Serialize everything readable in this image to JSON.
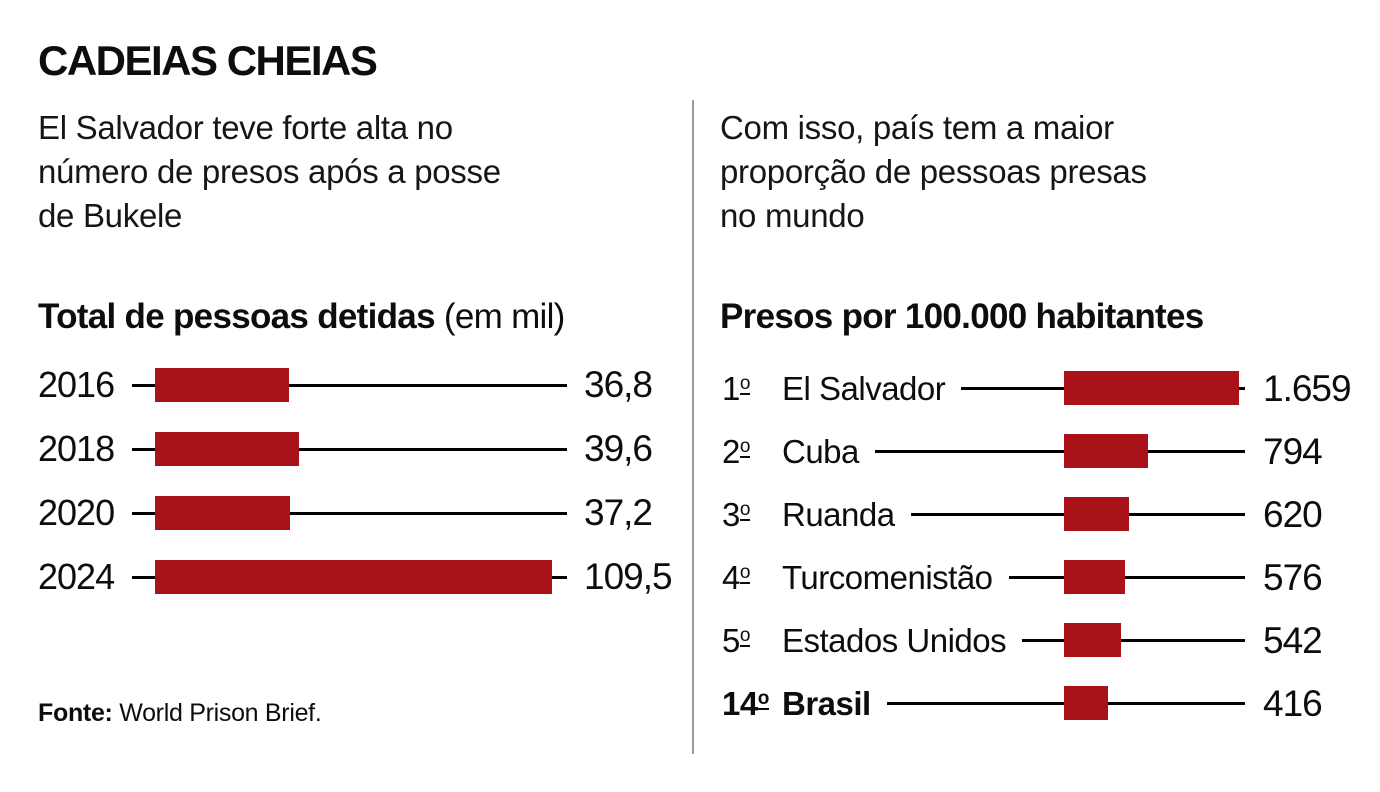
{
  "page": {
    "title": "CADEIAS CHEIAS"
  },
  "left": {
    "subtitle_lines": [
      "El Salvador teve forte alta no",
      "número de presos após a posse",
      "de Bukele"
    ],
    "source_label": "Fonte:",
    "source_text": "World Prison Brief."
  },
  "right": {
    "subtitle_lines": [
      "Com isso, país tem a maior",
      "proporção de pessoas presas",
      "no mundo"
    ]
  },
  "colors": {
    "bar_red": "#a91218",
    "line_black": "#000000",
    "divider_gray": "#9a9a9a"
  },
  "chart_data": [
    {
      "type": "bar",
      "orientation": "horizontal",
      "title": "Total de pessoas detidas",
      "title_note": "(em mil)",
      "categories": [
        "2016",
        "2018",
        "2020",
        "2024"
      ],
      "values": [
        36.8,
        39.6,
        37.2,
        109.5
      ],
      "value_labels": [
        "36,8",
        "39,6",
        "37,2",
        "109,5"
      ],
      "unit": "mil pessoas",
      "xlim": [
        0,
        113
      ],
      "grid": false,
      "legend": false
    },
    {
      "type": "bar",
      "orientation": "horizontal",
      "title": "Presos por 100.000 habitantes",
      "ranks": [
        "1",
        "2",
        "3",
        "4",
        "5",
        "14"
      ],
      "ordinal_suffix": "o",
      "categories": [
        "El Salvador",
        "Cuba",
        "Ruanda",
        "Turcomenistão",
        "Estados Unidos",
        "Brasil"
      ],
      "values": [
        1659,
        794,
        620,
        576,
        542,
        416
      ],
      "value_labels": [
        "1.659",
        "794",
        "620",
        "576",
        "542",
        "416"
      ],
      "bold_index": 5,
      "unit": "presos por 100.000 habitantes",
      "xlim": [
        0,
        1700
      ],
      "grid": false,
      "legend": false
    }
  ]
}
